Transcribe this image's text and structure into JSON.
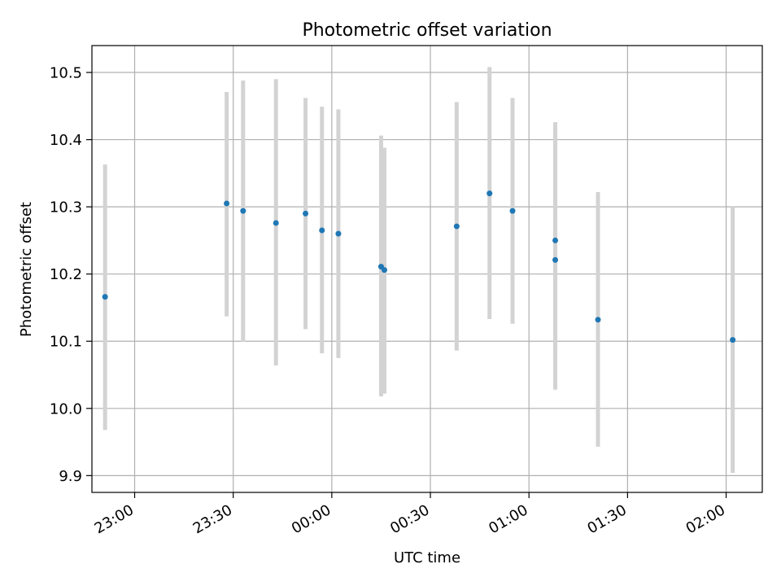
{
  "chart_data": {
    "type": "scatter",
    "title": "Photometric offset variation",
    "xlabel": "UTC time",
    "ylabel": "Photometric offset",
    "x_is_time": true,
    "xlim": [
      "22:47",
      "02:11"
    ],
    "ylim": [
      9.875,
      10.54
    ],
    "grid": true,
    "x_ticks": [
      "23:00",
      "23:30",
      "00:00",
      "00:30",
      "01:00",
      "01:30",
      "02:00"
    ],
    "y_ticks": [
      9.9,
      10.0,
      10.1,
      10.2,
      10.3,
      10.4,
      10.5
    ],
    "colors": {
      "marker": "#1f77b4",
      "errorbar": "#d3d3d3",
      "grid": "#b0b0b0"
    },
    "series": [
      {
        "points": [
          {
            "x": "22:51",
            "y": 10.166,
            "ylow": 9.968,
            "yhigh": 10.363
          },
          {
            "x": "23:28",
            "y": 10.305,
            "ylow": 10.137,
            "yhigh": 10.471
          },
          {
            "x": "23:33",
            "y": 10.294,
            "ylow": 10.099,
            "yhigh": 10.488
          },
          {
            "x": "23:43",
            "y": 10.276,
            "ylow": 10.064,
            "yhigh": 10.49
          },
          {
            "x": "23:52",
            "y": 10.29,
            "ylow": 10.118,
            "yhigh": 10.462
          },
          {
            "x": "23:57",
            "y": 10.265,
            "ylow": 10.082,
            "yhigh": 10.449
          },
          {
            "x": "00:02",
            "y": 10.26,
            "ylow": 10.075,
            "yhigh": 10.445
          },
          {
            "x": "00:15",
            "y": 10.211,
            "ylow": 10.018,
            "yhigh": 10.406
          },
          {
            "x": "00:16",
            "y": 10.206,
            "ylow": 10.022,
            "yhigh": 10.388
          },
          {
            "x": "00:38",
            "y": 10.271,
            "ylow": 10.086,
            "yhigh": 10.456
          },
          {
            "x": "00:48",
            "y": 10.32,
            "ylow": 10.133,
            "yhigh": 10.508
          },
          {
            "x": "00:55",
            "y": 10.294,
            "ylow": 10.126,
            "yhigh": 10.462
          },
          {
            "x": "01:08",
            "y": 10.25,
            "ylow": 10.074,
            "yhigh": 10.426
          },
          {
            "x": "01:08",
            "y": 10.221,
            "ylow": 10.028,
            "yhigh": 10.418
          },
          {
            "x": "01:21",
            "y": 10.132,
            "ylow": 9.943,
            "yhigh": 10.322
          },
          {
            "x": "02:02",
            "y": 10.102,
            "ylow": 9.904,
            "yhigh": 10.3
          }
        ]
      }
    ]
  }
}
